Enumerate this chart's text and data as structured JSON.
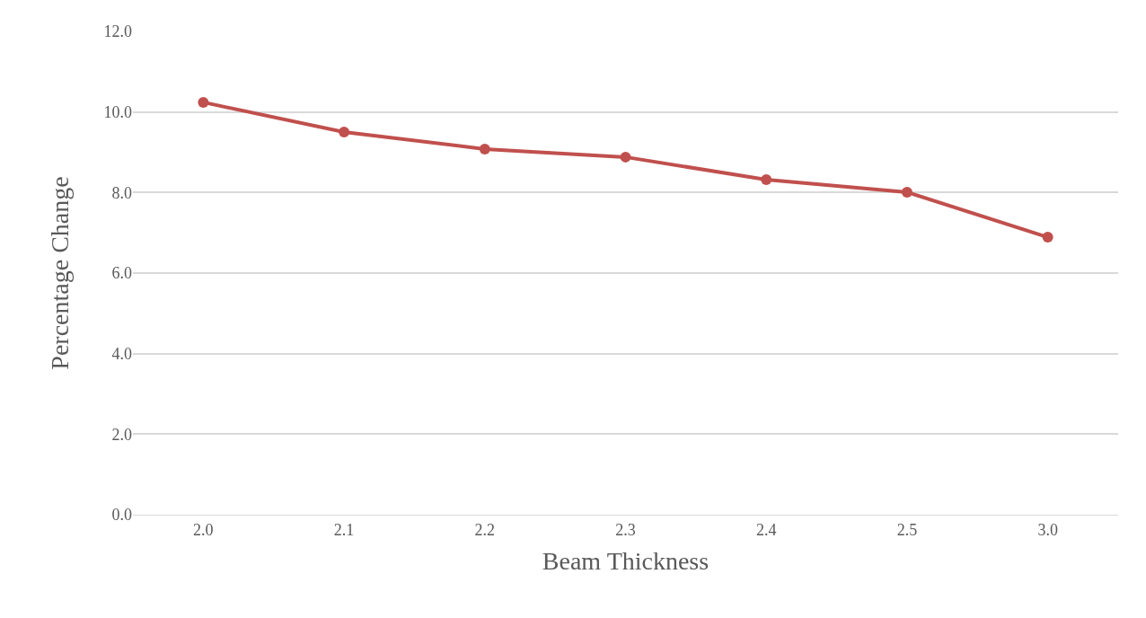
{
  "chart_data": {
    "type": "line",
    "xlabel": "Beam Thickness",
    "ylabel": "Percentage Change",
    "categories": [
      "2.0",
      "2.1",
      "2.2",
      "2.3",
      "2.4",
      "2.5",
      "3.0"
    ],
    "series": [
      {
        "color": "#c0504d",
        "values": [
          10.24,
          9.5,
          9.08,
          8.88,
          8.32,
          8.01,
          6.89
        ]
      }
    ],
    "ylim": [
      0,
      12
    ],
    "yticks": [
      {
        "value": 0,
        "label": "0.0"
      },
      {
        "value": 2,
        "label": "2.0"
      },
      {
        "value": 4,
        "label": "4.0"
      },
      {
        "value": 6,
        "label": "6.0"
      },
      {
        "value": 8,
        "label": "8.0"
      },
      {
        "value": 10,
        "label": "10.0"
      },
      {
        "value": 12,
        "label": "12.0"
      }
    ],
    "grid": "y",
    "marker": "circle",
    "line_style": "solid"
  }
}
